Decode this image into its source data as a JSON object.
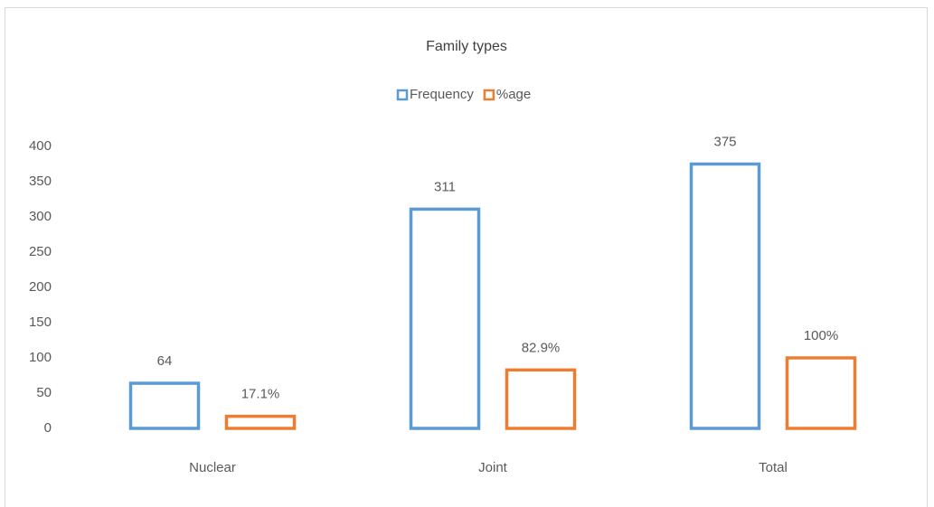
{
  "chart_data": {
    "type": "bar",
    "title": "Family types",
    "categories": [
      "Nuclear",
      "Joint",
      "Total"
    ],
    "series": [
      {
        "name": "Frequency",
        "color": "#5b9bd5",
        "values": [
          64,
          311,
          375
        ]
      },
      {
        "name": "%age",
        "color": "#ed7d31",
        "values": [
          17.1,
          82.9,
          100
        ],
        "value_labels": [
          "17.1%",
          "82.9%",
          "100%"
        ]
      }
    ],
    "ylim": [
      0,
      400
    ],
    "yticks": [
      0,
      50,
      100,
      150,
      200,
      250,
      300,
      350,
      400
    ],
    "grid": false,
    "legend": "top",
    "bar_style": "outline"
  }
}
